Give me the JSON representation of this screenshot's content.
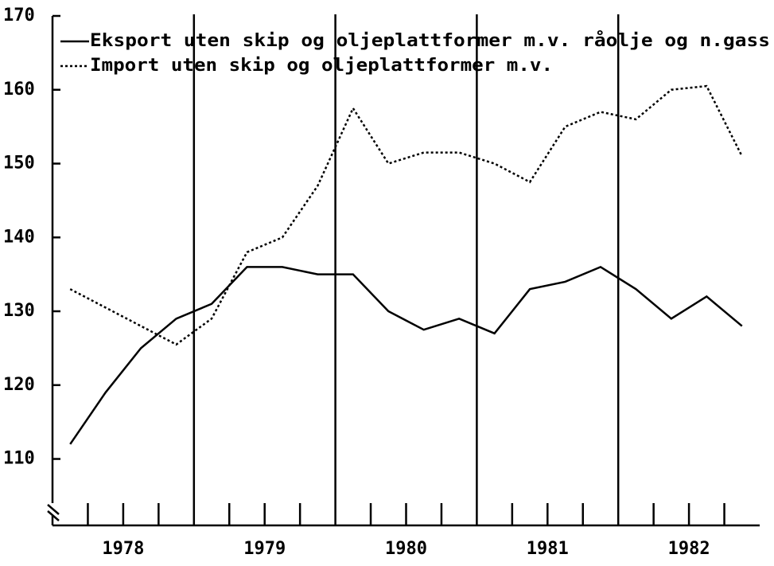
{
  "chart_data": {
    "type": "line",
    "x": [
      1978.125,
      1978.375,
      1978.625,
      1978.875,
      1979.125,
      1979.375,
      1979.625,
      1979.875,
      1980.125,
      1980.375,
      1980.625,
      1980.875,
      1981.125,
      1981.375,
      1981.625,
      1981.875,
      1982.125,
      1982.375,
      1982.625,
      1982.875
    ],
    "series": [
      {
        "name": "Eksport uten skip og oljeplattformer m.v. råolje og n.gass",
        "color": "#000000",
        "dash": "solid",
        "values": [
          112,
          119,
          125,
          129,
          131,
          136,
          136,
          135,
          135,
          130,
          127.5,
          129,
          127,
          133,
          134,
          136,
          133,
          129,
          132,
          128
        ]
      },
      {
        "name": "Import uten skip og oljeplattformer m.v.",
        "color": "#000000",
        "dash": "dotted",
        "values": [
          133,
          130.5,
          128,
          125.5,
          129,
          138,
          140,
          147,
          157.5,
          150,
          151.5,
          151.5,
          150,
          147.5,
          155,
          157,
          156,
          160,
          160.5,
          151
        ]
      }
    ],
    "xlim": [
      1978,
      1983
    ],
    "xticks": [
      {
        "value": 1978.5,
        "label": "1978"
      },
      {
        "value": 1979.5,
        "label": "1979"
      },
      {
        "value": 1980.5,
        "label": "1980"
      },
      {
        "value": 1981.5,
        "label": "1981"
      },
      {
        "value": 1982.5,
        "label": "1982"
      }
    ],
    "xminor_ticks": [
      1978.25,
      1978.5,
      1978.75,
      1979.25,
      1979.5,
      1979.75,
      1980.25,
      1980.5,
      1980.75,
      1981.25,
      1981.5,
      1981.75,
      1982.25,
      1982.5,
      1982.75
    ],
    "year_lines": [
      1979,
      1980,
      1981,
      1982
    ],
    "ylim": [
      101,
      170
    ],
    "yticks": [
      110,
      120,
      130,
      140,
      150,
      160,
      170
    ],
    "legend": "top-left"
  }
}
